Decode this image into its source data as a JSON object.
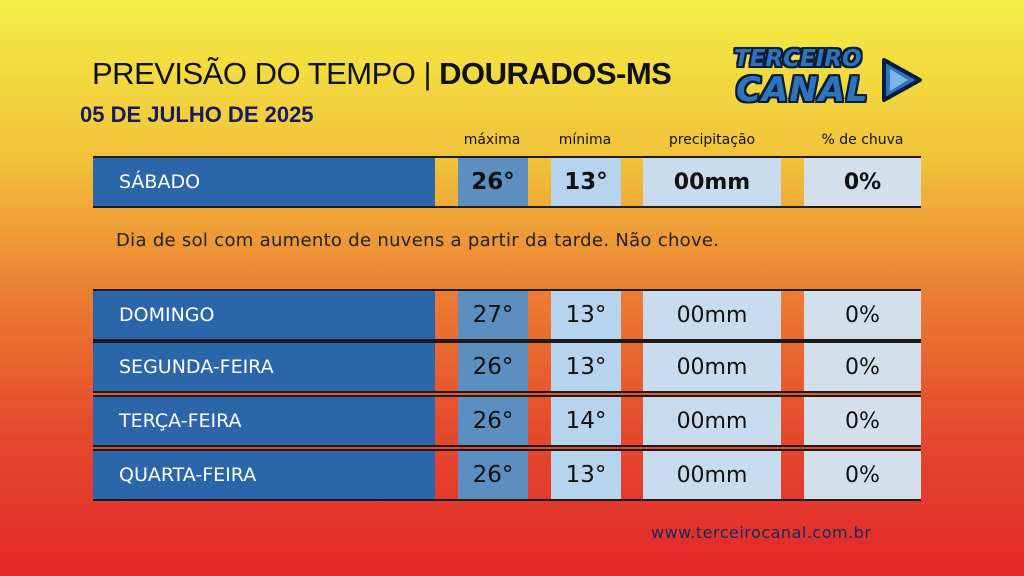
{
  "header": {
    "title_prefix": "PREVISÃO DO TEMPO | ",
    "title_city": "DOURADOS-MS",
    "date": "05 DE JULHO DE 2025"
  },
  "logo": {
    "line1": "TERCEIRO",
    "line2": "CANAL",
    "icon": "play-icon",
    "color": "#2f73b8"
  },
  "columns": {
    "max": "máxima",
    "min": "mínima",
    "precip": "precipitação",
    "chance": "% de chuva"
  },
  "today": {
    "day": "SÁBADO",
    "max": "26°",
    "min": "13°",
    "precip": "00mm",
    "chance": "0%",
    "description": "Dia de sol com aumento de nuvens a partir da tarde. Não chove."
  },
  "forecast": [
    {
      "day": "DOMINGO",
      "max": "27°",
      "min": "13°",
      "precip": "00mm",
      "chance": "0%"
    },
    {
      "day": "SEGUNDA-FEIRA",
      "max": "26°",
      "min": "13°",
      "precip": "00mm",
      "chance": "0%"
    },
    {
      "day": "TERÇA-FEIRA",
      "max": "26°",
      "min": "14°",
      "precip": "00mm",
      "chance": "0%"
    },
    {
      "day": "QUARTA-FEIRA",
      "max": "26°",
      "min": "13°",
      "precip": "00mm",
      "chance": "0%"
    }
  ],
  "footer": {
    "website": "www.terceirocanal.com.br"
  }
}
